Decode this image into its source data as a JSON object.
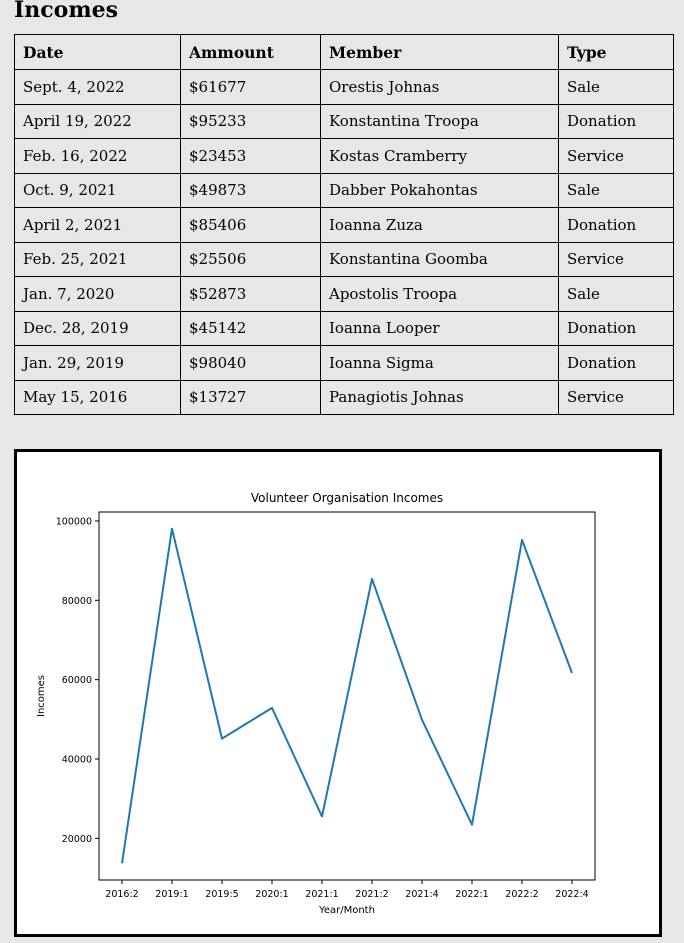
{
  "page": {
    "heading": "Incomes"
  },
  "table": {
    "headers": [
      "Date",
      "Ammount",
      "Member",
      "Type"
    ],
    "rows": [
      [
        "Sept. 4, 2022",
        "$61677",
        "Orestis Johnas",
        "Sale"
      ],
      [
        "April 19, 2022",
        "$95233",
        "Konstantina Troopa",
        "Donation"
      ],
      [
        "Feb. 16, 2022",
        "$23453",
        "Kostas Cramberry",
        "Service"
      ],
      [
        "Oct. 9, 2021",
        "$49873",
        "Dabber Pokahontas",
        "Sale"
      ],
      [
        "April 2, 2021",
        "$85406",
        "Ioanna Zuza",
        "Donation"
      ],
      [
        "Feb. 25, 2021",
        "$25506",
        "Konstantina Goomba",
        "Service"
      ],
      [
        "Jan. 7, 2020",
        "$52873",
        "Apostolis Troopa",
        "Sale"
      ],
      [
        "Dec. 28, 2019",
        "$45142",
        "Ioanna Looper",
        "Donation"
      ],
      [
        "Jan. 29, 2019",
        "$98040",
        "Ioanna Sigma",
        "Donation"
      ],
      [
        "May 15, 2016",
        "$13727",
        "Panagiotis Johnas",
        "Service"
      ]
    ]
  },
  "chart_data": {
    "type": "line",
    "title": "Volunteer Organisation Incomes",
    "xlabel": "Year/Month",
    "ylabel": "Incomes",
    "categories": [
      "2016:2",
      "2019:1",
      "2019:5",
      "2020:1",
      "2021:1",
      "2021:2",
      "2021:4",
      "2022:1",
      "2022:2",
      "2022:4"
    ],
    "values": [
      13727,
      98040,
      45142,
      52873,
      25506,
      85406,
      49873,
      23453,
      95233,
      61677
    ],
    "yticks": [
      20000,
      40000,
      60000,
      80000,
      100000
    ],
    "ytick_labels": [
      "20000",
      "40000",
      "60000",
      "80000",
      "100000"
    ],
    "ylim": [
      9510,
      102257
    ],
    "grid": false,
    "line_color": "#1f77b4"
  }
}
